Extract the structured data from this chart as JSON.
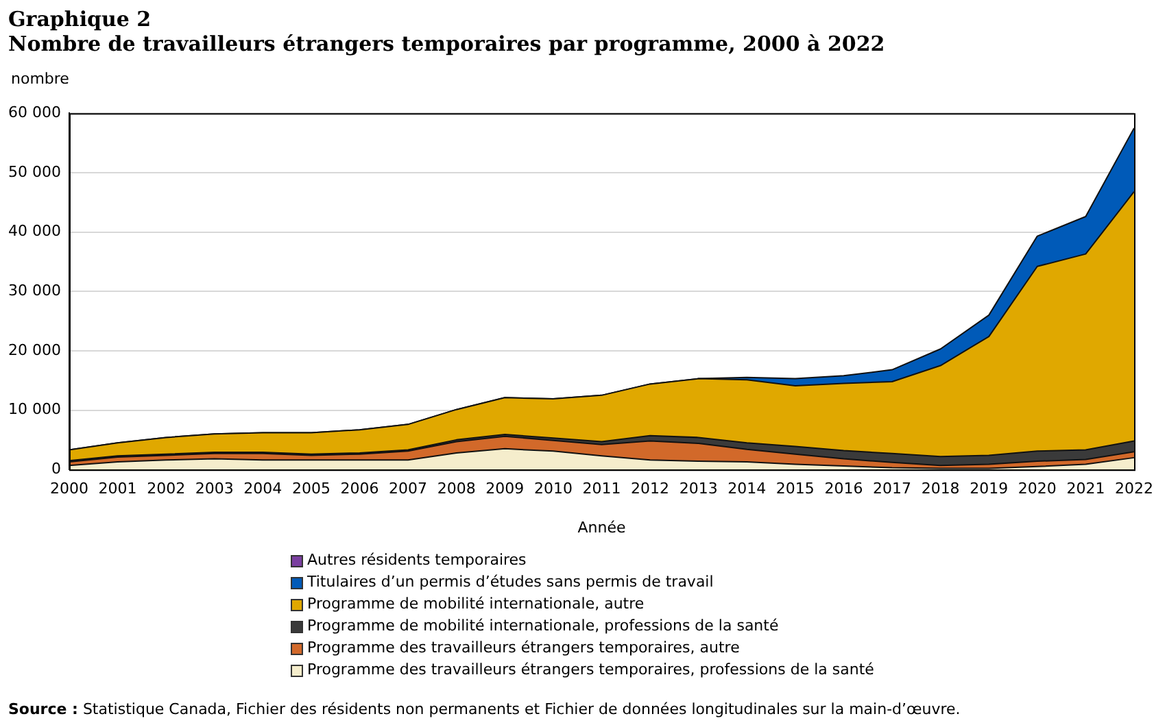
{
  "chart_data": {
    "type": "area",
    "stacked": true,
    "title": "Graphique 2",
    "subtitle": "Nombre de travailleurs étrangers temporaires par programme, 2000 à 2022",
    "ylabel": "nombre",
    "xlabel": "Année",
    "categories": [
      "2000",
      "2001",
      "2002",
      "2003",
      "2004",
      "2005",
      "2006",
      "2007",
      "2008",
      "2009",
      "2010",
      "2011",
      "2012",
      "2013",
      "2014",
      "2015",
      "2016",
      "2017",
      "2018",
      "2019",
      "2020",
      "2021",
      "2022"
    ],
    "series": [
      {
        "name": "Programme des travailleurs étrangers temporaires, professions de la santé",
        "color": "#f5edcc",
        "values": [
          700,
          1300,
          1600,
          1800,
          1600,
          1600,
          1600,
          1600,
          2800,
          3500,
          3100,
          2300,
          1600,
          1400,
          1300,
          900,
          600,
          300,
          200,
          200,
          500,
          900,
          2000
        ]
      },
      {
        "name": "Programme des travailleurs étrangers temporaires, autre",
        "color": "#d2692a",
        "values": [
          600,
          800,
          800,
          900,
          1100,
          800,
          1000,
          1500,
          1900,
          2100,
          1800,
          1900,
          3200,
          3000,
          2100,
          1700,
          1200,
          900,
          500,
          700,
          900,
          800,
          1000
        ]
      },
      {
        "name": "Programme de mobilité internationale, professions de la santé",
        "color": "#3a3a3a",
        "values": [
          200,
          200,
          200,
          200,
          200,
          200,
          200,
          200,
          300,
          300,
          400,
          500,
          900,
          1000,
          1100,
          1300,
          1400,
          1500,
          1500,
          1500,
          1700,
          1600,
          1800
        ]
      },
      {
        "name": "Programme de mobilité internationale, autre",
        "color": "#e0a800",
        "values": [
          1800,
          2200,
          2800,
          3100,
          3300,
          3600,
          3900,
          4300,
          5100,
          6200,
          6600,
          7800,
          8700,
          9900,
          10600,
          10200,
          11300,
          12100,
          15300,
          20000,
          31100,
          33000,
          42000
        ]
      },
      {
        "name": "Titulaires d’un permis d’études sans permis de travail",
        "color": "#005ab8",
        "values": [
          0,
          0,
          0,
          0,
          0,
          0,
          0,
          0,
          0,
          0,
          0,
          0,
          0,
          0,
          400,
          1200,
          1300,
          2000,
          2800,
          3600,
          5100,
          6300,
          10700
        ]
      },
      {
        "name": "Autres résidents temporaires",
        "color": "#7a3fa0",
        "values": [
          null,
          null,
          null,
          null,
          null,
          null,
          null,
          null,
          null,
          null,
          null,
          null,
          null,
          null,
          null,
          null,
          null,
          null,
          null,
          null,
          null,
          null,
          null
        ]
      }
    ],
    "ylim": [
      0,
      60000
    ],
    "yticks": [
      0,
      {
        "value": 10000,
        "label": "10 000"
      },
      {
        "value": 20000,
        "label": "20 000"
      },
      {
        "value": 30000,
        "label": "30 000"
      },
      {
        "value": 40000,
        "label": "40 000"
      },
      {
        "value": 50000,
        "label": "50 000"
      },
      {
        "value": 60000,
        "label": "60 000"
      }
    ],
    "grid": "y",
    "legend": "bottom",
    "annotations": [
      "Source : Statistique Canada, Fichier des résidents non permanents et Fichier de données longitudinales sur la main-d’œuvre."
    ]
  }
}
